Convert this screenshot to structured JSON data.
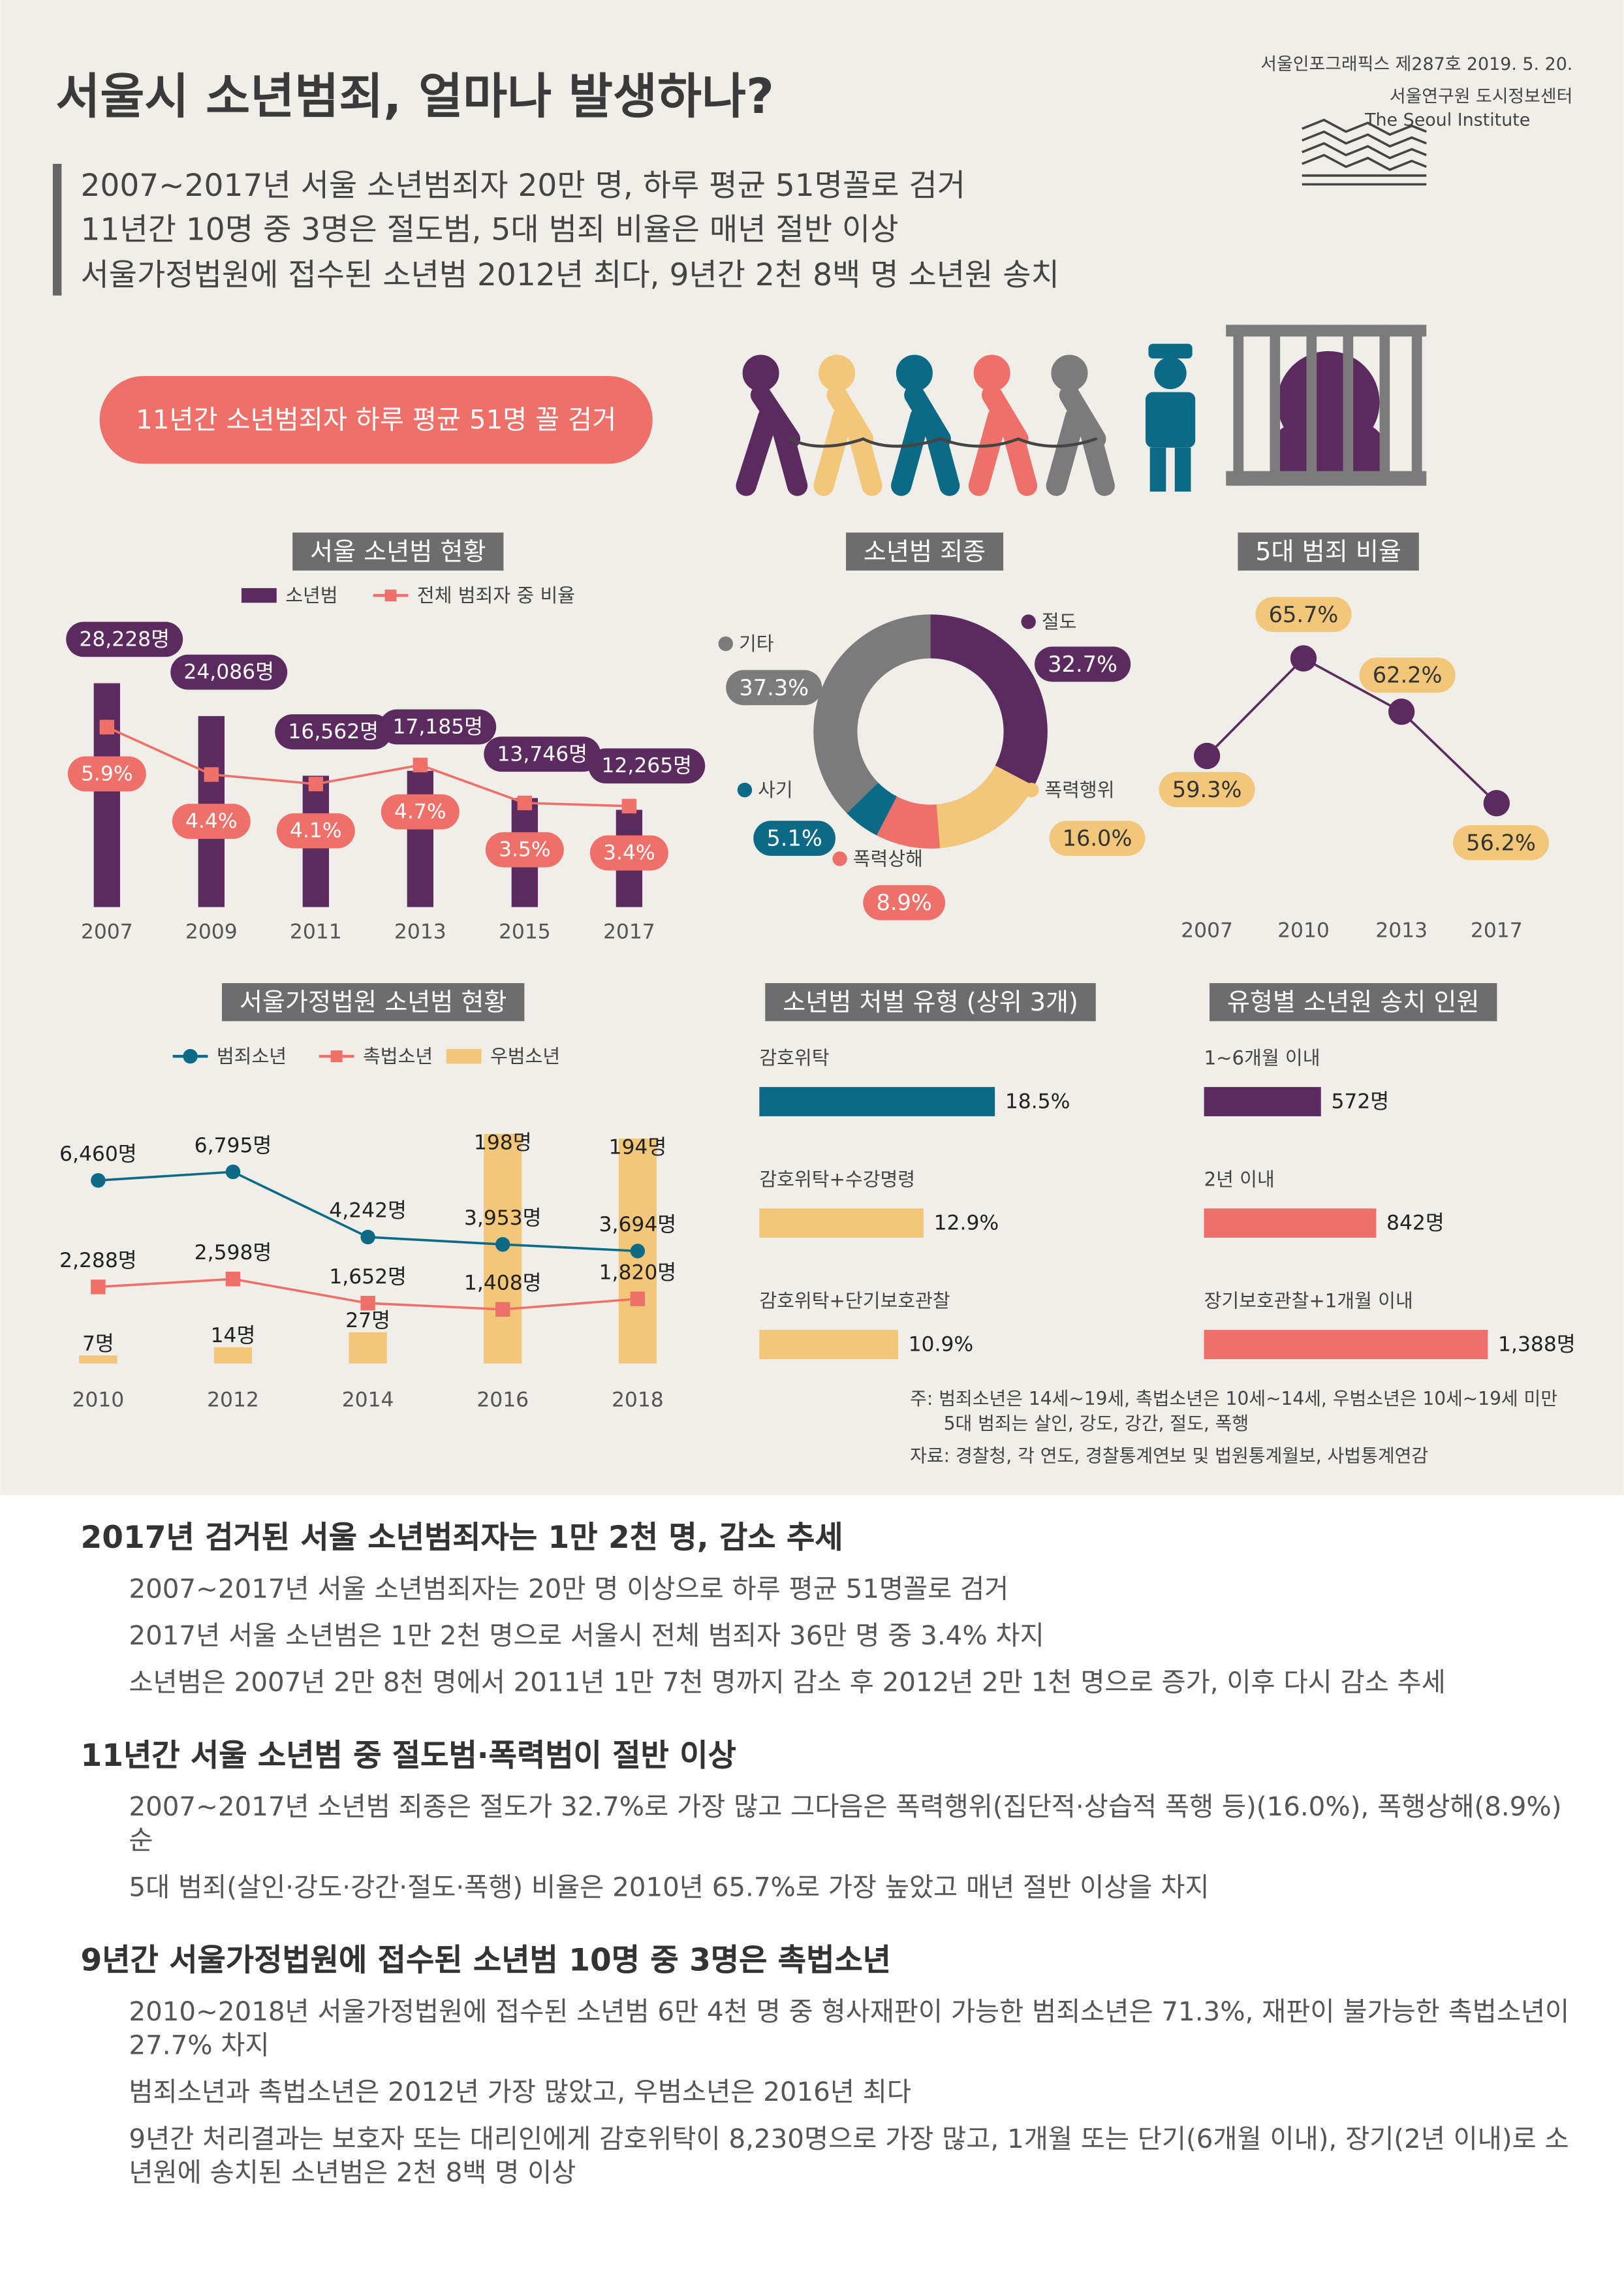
{
  "header": {
    "title": "서울시 소년범죄, 얼마나 발생하나?",
    "issue": "서울인포그래픽스 제287호 2019. 5. 20.",
    "org": "서울연구원 도시정보센터",
    "org_en": "The Seoul Institute",
    "summary": [
      "2007~2017년 서울 소년범죄자 20만 명, 하루 평균 51명꼴로 검거",
      "11년간 10명 중 3명은 절도범, 5대 범죄 비율은 매년 절반 이상",
      "서울가정법원에 접수된 소년범 2012년 최다, 9년간 2천 8백 명 소년원 송치"
    ],
    "badge": "11년간 소년범죄자 하루 평균 51명 꼴 검거"
  },
  "chart_data": [
    {
      "type": "combo",
      "title": "서울 소년범 현황",
      "categories": [
        "2007",
        "2009",
        "2011",
        "2013",
        "2015",
        "2017"
      ],
      "series": [
        {
          "name": "소년범",
          "kind": "bar",
          "color": "#5b2a5e",
          "values": [
            28228,
            24086,
            16562,
            17185,
            13746,
            12265
          ],
          "value_labels": [
            "28,228명",
            "24,086명",
            "16,562명",
            "17,185명",
            "13,746명",
            "12,265명"
          ]
        },
        {
          "name": "전체 범죄자 중 비율",
          "kind": "line",
          "marker": "square",
          "axis": "y2",
          "color": "#ef7068",
          "values": [
            5.9,
            4.4,
            4.1,
            4.7,
            3.5,
            3.4
          ],
          "value_labels": [
            "5.9%",
            "4.4%",
            "4.1%",
            "4.7%",
            "3.5%",
            "3.4%"
          ]
        }
      ]
    },
    {
      "type": "donut",
      "title": "소년범 죄종",
      "categories": [
        "절도",
        "폭력행위",
        "폭력상해",
        "사기",
        "기타"
      ],
      "values": [
        32.7,
        16.0,
        8.9,
        5.1,
        37.3
      ],
      "value_labels": [
        "32.7%",
        "16.0%",
        "8.9%",
        "5.1%",
        "37.3%"
      ],
      "colors": [
        "#5b2a5e",
        "#f3c77a",
        "#ef7068",
        "#0d6a86",
        "#7b7b7b"
      ]
    },
    {
      "type": "line",
      "title": "5대 범죄 비율",
      "categories": [
        "2007",
        "2010",
        "2013",
        "2017"
      ],
      "values": [
        59.3,
        65.7,
        62.2,
        56.2
      ],
      "value_labels": [
        "59.3%",
        "65.7%",
        "62.2%",
        "56.2%"
      ],
      "color": "#5b2a5e",
      "label_color": "#f3c77a"
    },
    {
      "type": "combo",
      "title": "서울가정법원 소년범 현황",
      "categories": [
        "2010",
        "2012",
        "2014",
        "2016",
        "2018"
      ],
      "series": [
        {
          "name": "범죄소년",
          "kind": "line",
          "marker": "circle",
          "color": "#0d6a86",
          "values": [
            6460,
            6795,
            4242,
            3953,
            3694
          ],
          "value_labels": [
            "6,460명",
            "6,795명",
            "4,242명",
            "3,953명",
            "3,694명"
          ]
        },
        {
          "name": "촉법소년",
          "kind": "line",
          "marker": "square",
          "color": "#ef7068",
          "values": [
            2288,
            2598,
            1652,
            1408,
            1820
          ],
          "value_labels": [
            "2,288명",
            "2,598명",
            "1,652명",
            "1,408명",
            "1,820명"
          ]
        },
        {
          "name": "우범소년",
          "kind": "bar",
          "color": "#f3c77a",
          "values": [
            7,
            14,
            27,
            198,
            194
          ],
          "value_labels": [
            "7명",
            "14명",
            "27명",
            "198명",
            "194명"
          ]
        }
      ]
    },
    {
      "type": "hbar",
      "title": "소년범 처벌 유형 (상위 3개)",
      "categories": [
        "감호위탁",
        "감호위탁+수강명령",
        "감호위탁+단기보호관찰"
      ],
      "values": [
        18.5,
        12.9,
        10.9
      ],
      "value_labels": [
        "18.5%",
        "12.9%",
        "10.9%"
      ],
      "colors": [
        "#0d6a86",
        "#f3c77a",
        "#f3c77a"
      ]
    },
    {
      "type": "hbar",
      "title": "유형별 소년원 송치 인원",
      "categories": [
        "1~6개월 이내",
        "2년 이내",
        "장기보호관찰+1개월 이내"
      ],
      "values": [
        572,
        842,
        1388
      ],
      "value_labels": [
        "572명",
        "842명",
        "1,388명"
      ],
      "colors": [
        "#5b2a5e",
        "#ef7068",
        "#ef7068"
      ]
    }
  ],
  "notes": [
    "주: 범죄소년은 14세~19세, 촉법소년은 10세~14세, 우범소년은 10세~19세 미만",
    "5대 범죄는 살인, 강도, 강간, 절도, 폭행",
    "자료: 경찰청, 각 연도, 경찰통계연보 및 법원통계월보, 사법통계연감"
  ],
  "sections": [
    {
      "heading": "2017년 검거된 서울 소년범죄자는 1만 2천 명, 감소 추세",
      "paragraphs": [
        "2007~2017년 서울 소년범죄자는 20만 명 이상으로 하루 평균 51명꼴로 검거",
        "2017년 서울 소년범은 1만 2천 명으로 서울시 전체 범죄자 36만 명 중 3.4% 차지",
        "소년범은 2007년 2만 8천 명에서 2011년 1만 7천 명까지 감소 후 2012년 2만 1천 명으로 증가, 이후 다시 감소 추세"
      ]
    },
    {
      "heading": "11년간 서울 소년범 중 절도범·폭력범이 절반 이상",
      "paragraphs": [
        "2007~2017년 소년범 죄종은 절도가 32.7%로 가장 많고 그다음은 폭력행위(집단적·상습적 폭행 등)(16.0%), 폭행상해(8.9%) 순",
        "5대 범죄(살인·강도·강간·절도·폭행) 비율은 2010년 65.7%로 가장 높았고 매년 절반 이상을 차지"
      ]
    },
    {
      "heading": "9년간 서울가정법원에 접수된 소년범 10명 중 3명은 촉법소년",
      "paragraphs": [
        "2010~2018년 서울가정법원에 접수된 소년범 6만 4천 명 중 형사재판이 가능한 범죄소년은 71.3%, 재판이 불가능한 촉법소년이 27.7% 차지",
        "범죄소년과 촉법소년은 2012년 가장 많았고, 우범소년은 2016년 최다",
        "9년간 처리결과는 보호자 또는 대리인에게 감호위탁이 8,230명으로 가장 많고, 1개월 또는 단기(6개월 이내), 장기(2년 이내)로 소년원에 송치된 소년범은 2천 8백 명 이상"
      ]
    }
  ]
}
